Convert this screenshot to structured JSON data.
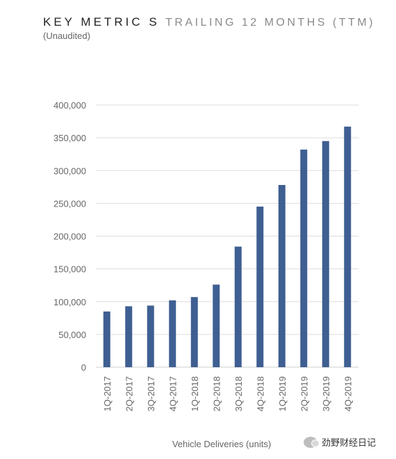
{
  "header": {
    "title_main": "KEY METRIC S",
    "title_sub": "TRAILING 12 MONTHS (TTM)",
    "subtitle": "(Unaudited)"
  },
  "watermark": {
    "text": "劲野财经日记",
    "icon": "wechat-icon"
  },
  "colors": {
    "bar": "#3f5f92",
    "grid": "#dddddd",
    "axis": "#cccccc"
  },
  "chart_data": {
    "type": "bar",
    "title": "KEY METRIC S TRAILING 12 MONTHS (TTM)",
    "subtitle": "(Unaudited)",
    "xlabel": "Vehicle Deliveries (units)",
    "ylabel": "",
    "ylim": [
      0,
      400000
    ],
    "yticks": [
      "0",
      "50,000",
      "100,000",
      "150,000",
      "200,000",
      "250,000",
      "300,000",
      "350,000",
      "400,000"
    ],
    "grid": true,
    "legend": "none",
    "categories": [
      "1Q-2017",
      "2Q-2017",
      "3Q-2017",
      "4Q-2017",
      "1Q-2018",
      "2Q-2018",
      "3Q-2018",
      "4Q-2018",
      "1Q-2019",
      "2Q-2019",
      "3Q-2019",
      "4Q-2019"
    ],
    "values": [
      85000,
      93000,
      94000,
      102000,
      107000,
      126000,
      184000,
      245000,
      278000,
      332000,
      345000,
      367000
    ]
  }
}
